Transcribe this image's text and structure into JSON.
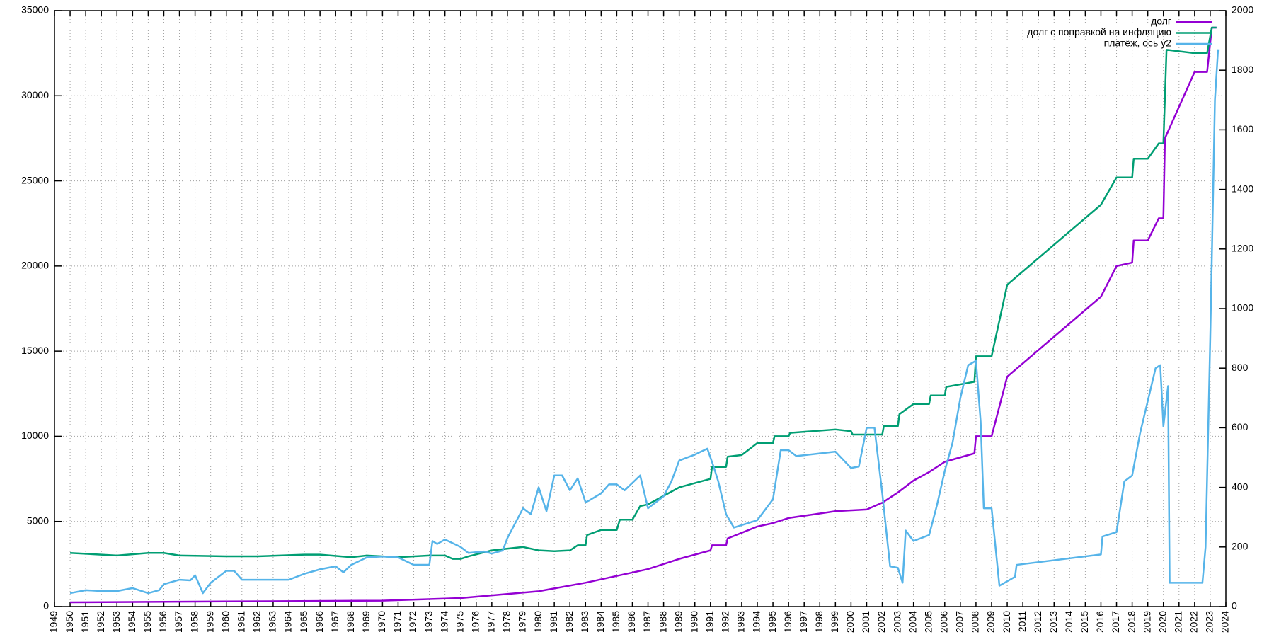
{
  "chart_data": {
    "type": "line",
    "xlim": [
      1949,
      2024
    ],
    "xticks": [
      1949,
      1950,
      1951,
      1952,
      1953,
      1954,
      1955,
      1956,
      1957,
      1958,
      1959,
      1960,
      1961,
      1962,
      1963,
      1964,
      1965,
      1966,
      1967,
      1968,
      1969,
      1970,
      1971,
      1972,
      1973,
      1974,
      1975,
      1976,
      1977,
      1978,
      1979,
      1980,
      1981,
      1982,
      1983,
      1984,
      1985,
      1986,
      1987,
      1988,
      1989,
      1990,
      1991,
      1992,
      1993,
      1994,
      1995,
      1996,
      1997,
      1998,
      1999,
      2000,
      2001,
      2002,
      2003,
      2004,
      2005,
      2006,
      2007,
      2008,
      2009,
      2010,
      2011,
      2012,
      2013,
      2014,
      2015,
      2016,
      2017,
      2018,
      2019,
      2020,
      2021,
      2022,
      2023,
      2024
    ],
    "ylim": [
      0,
      35000
    ],
    "yticks": [
      0,
      5000,
      10000,
      15000,
      20000,
      25000,
      30000,
      35000
    ],
    "y2lim": [
      0,
      2000
    ],
    "y2ticks": [
      0,
      200,
      400,
      600,
      800,
      1000,
      1200,
      1400,
      1600,
      1800,
      2000
    ],
    "grid": true,
    "legend": "top-right",
    "series": [
      {
        "name": "долг",
        "color": "#9400d3",
        "x": [
          1950,
          1960,
          1970,
          1975,
          1980,
          1983,
          1985,
          1987,
          1989,
          1991,
          1991.1,
          1992,
          1992.1,
          1994,
          1995,
          1996,
          1999,
          2001,
          2002,
          2003,
          2004,
          2005,
          2006,
          2007.9,
          2008,
          2009,
          2010,
          2016,
          2017,
          2018,
          2018.1,
          2019,
          2019.7,
          2020,
          2020.1,
          2022,
          2022.8,
          2023.1,
          2023.4
        ],
        "values": [
          250,
          300,
          350,
          500,
          900,
          1400,
          1800,
          2200,
          2800,
          3300,
          3600,
          3600,
          4000,
          4700,
          4900,
          5200,
          5600,
          5700,
          6100,
          6700,
          7400,
          7900,
          8500,
          9000,
          10000,
          10000,
          13500,
          18200,
          20000,
          20200,
          21500,
          21500,
          22800,
          22800,
          27500,
          31400,
          31400,
          34000,
          34000
        ]
      },
      {
        "name": "долг с поправкой на инфляцию",
        "color": "#009e73",
        "x": [
          1950,
          1953,
          1955,
          1956,
          1957,
          1960,
          1962,
          1965,
          1966,
          1968,
          1969,
          1971,
          1973,
          1974,
          1974.5,
          1975,
          1975.5,
          1977,
          1979,
          1980,
          1981,
          1982,
          1982.5,
          1983,
          1983.1,
          1984,
          1985,
          1985.2,
          1986,
          1986.5,
          1987,
          1988,
          1989,
          1991,
          1991.1,
          1992,
          1992.1,
          1993,
          1994,
          1995,
          1995.1,
          1996,
          1996.1,
          1999,
          2000,
          2000.1,
          2002,
          2002.1,
          2003,
          2003.1,
          2004,
          2005,
          2005.1,
          2006,
          2006.1,
          2007.9,
          2008,
          2009,
          2010,
          2016,
          2017,
          2018,
          2018.1,
          2019,
          2019.7,
          2020,
          2020.2,
          2022,
          2022.8,
          2023.1,
          2023.4
        ],
        "values": [
          3150,
          3000,
          3150,
          3150,
          3000,
          2950,
          2950,
          3050,
          3050,
          2900,
          3000,
          2900,
          3000,
          3000,
          2800,
          2800,
          2950,
          3300,
          3500,
          3300,
          3250,
          3300,
          3600,
          3600,
          4200,
          4500,
          4500,
          5100,
          5100,
          5900,
          6000,
          6500,
          7000,
          7500,
          8200,
          8200,
          8800,
          8900,
          9600,
          9600,
          10000,
          10000,
          10200,
          10400,
          10300,
          10100,
          10100,
          10600,
          10600,
          11300,
          11900,
          11900,
          12400,
          12400,
          12900,
          13200,
          14700,
          14700,
          18900,
          23600,
          25200,
          25200,
          26300,
          26300,
          27200,
          27200,
          32700,
          32500,
          32500,
          34000,
          34000
        ]
      },
      {
        "name": "платёж, ось y2",
        "color": "#56b4e9",
        "axis": "y2",
        "x": [
          1950,
          1951,
          1952,
          1953,
          1954,
          1955,
          1955.7,
          1956,
          1957,
          1957.7,
          1958,
          1958.5,
          1959,
          1960,
          1960.5,
          1961,
          1964,
          1965,
          1966,
          1967,
          1967.5,
          1968,
          1969,
          1970,
          1971,
          1972,
          1973,
          1973.2,
          1973.5,
          1974,
          1975,
          1975.5,
          1976.5,
          1977,
          1977.7,
          1978,
          1979,
          1979.5,
          1980,
          1980.5,
          1981,
          1981.5,
          1982,
          1982.5,
          1983,
          1983.2,
          1984,
          1984.5,
          1985,
          1985.5,
          1986.5,
          1987,
          1988,
          1988.5,
          1989,
          1990,
          1990.8,
          1991.2,
          1991.5,
          1992,
          1992.5,
          1994,
          1995,
          1995.5,
          1996,
          1996.5,
          1999,
          2000,
          2000.5,
          2001,
          2001.5,
          2002,
          2002.5,
          2003,
          2003.3,
          2003.5,
          2004,
          2005,
          2005.5,
          2006,
          2006.5,
          2007,
          2007.5,
          2008,
          2008.3,
          2008.5,
          2009,
          2009.5,
          2010.5,
          2010.6,
          2016,
          2016.1,
          2017,
          2017.5,
          2018,
          2018.5,
          2019,
          2019.5,
          2019.8,
          2020,
          2020.3,
          2020.4,
          2022.5,
          2022.7,
          2023,
          2023.3,
          2023.5
        ],
        "values": [
          45,
          55,
          52,
          52,
          62,
          45,
          55,
          75,
          90,
          88,
          105,
          45,
          80,
          120,
          120,
          90,
          90,
          110,
          125,
          135,
          115,
          140,
          165,
          168,
          165,
          140,
          140,
          220,
          210,
          225,
          200,
          180,
          185,
          178,
          188,
          230,
          330,
          310,
          400,
          320,
          440,
          440,
          390,
          430,
          350,
          355,
          380,
          410,
          410,
          390,
          440,
          330,
          370,
          420,
          490,
          510,
          530,
          470,
          420,
          310,
          265,
          290,
          360,
          525,
          525,
          505,
          520,
          465,
          470,
          600,
          600,
          380,
          135,
          130,
          80,
          255,
          220,
          240,
          340,
          455,
          550,
          700,
          810,
          825,
          620,
          330,
          330,
          70,
          100,
          140,
          175,
          235,
          250,
          420,
          440,
          580,
          690,
          800,
          810,
          605,
          740,
          80,
          80,
          200,
          900,
          1700,
          1870
        ]
      }
    ]
  }
}
